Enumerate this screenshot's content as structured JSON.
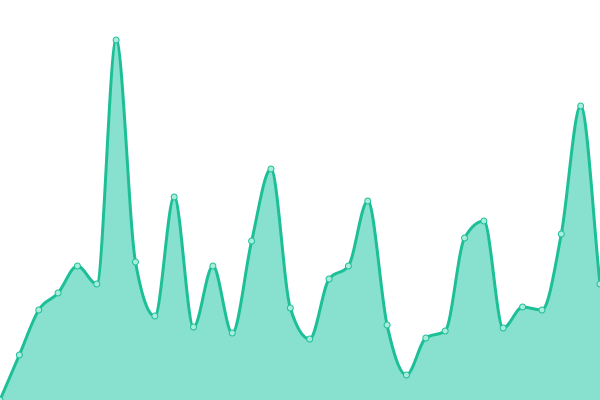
{
  "chart_data": {
    "type": "area",
    "title": "",
    "xlabel": "",
    "ylabel": "",
    "x": [
      0,
      1,
      2,
      3,
      4,
      5,
      6,
      7,
      8,
      9,
      10,
      11,
      12,
      13,
      14,
      15,
      16,
      17,
      18,
      19,
      20,
      21,
      22,
      23,
      24,
      25,
      26,
      27,
      28,
      29,
      30,
      31
    ],
    "series": [
      {
        "values": [
          0,
          45,
          90,
          107,
          134,
          116,
          360,
          138,
          84,
          203,
          73,
          134,
          67,
          159,
          231,
          92,
          61,
          121,
          134,
          199,
          75,
          25,
          62,
          69,
          162,
          179,
          72,
          93,
          90,
          166,
          294,
          116
        ]
      }
    ],
    "ylim": [
      0,
      400
    ],
    "grid": false,
    "axes_visible": false,
    "curve": "smooth",
    "markers": true,
    "colors": {
      "line": "#1dbf97",
      "fill": "#88e0cf",
      "marker_fill": "#a8ecdc"
    }
  }
}
